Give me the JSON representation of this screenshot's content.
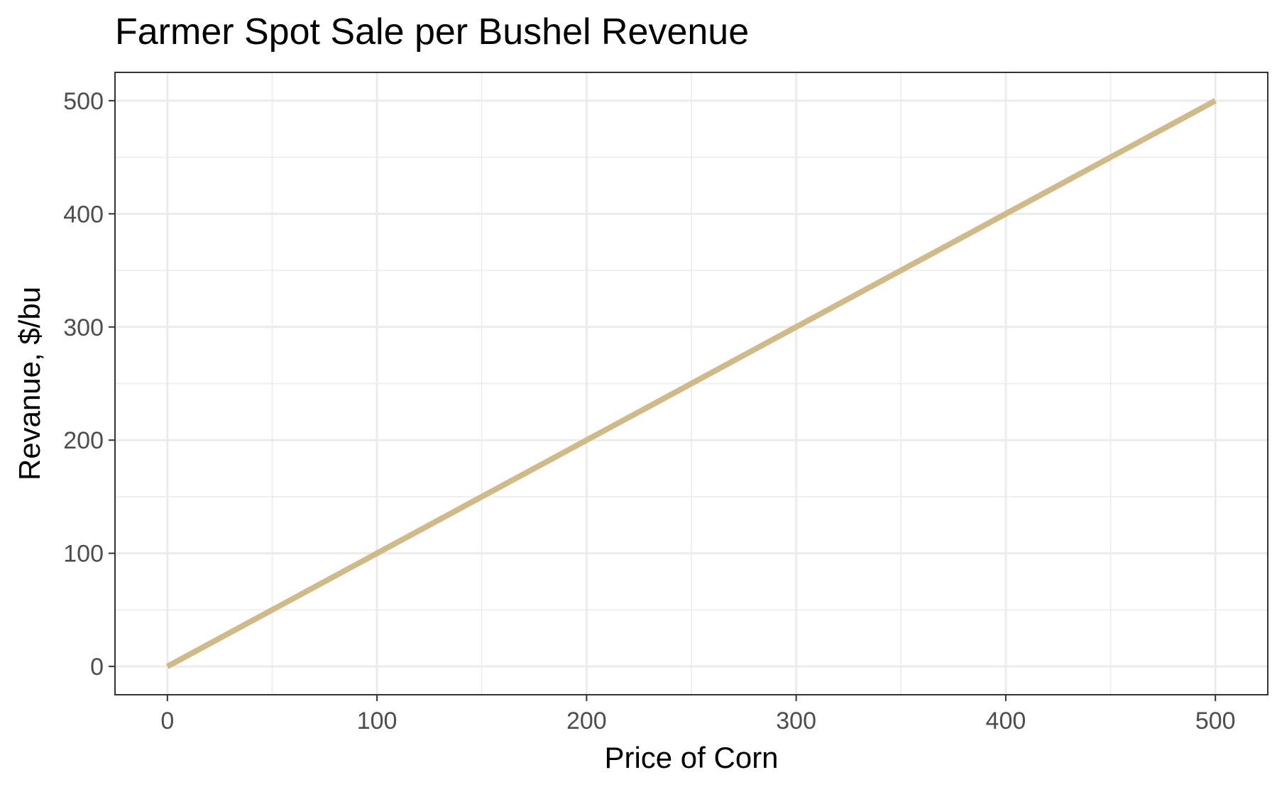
{
  "chart_data": {
    "type": "line",
    "title": "Farmer Spot Sale per Bushel Revenue",
    "xlabel": "Price of Corn",
    "ylabel": "Revanue, $/bu",
    "xlim": [
      -25,
      525
    ],
    "ylim": [
      -25,
      525
    ],
    "x_ticks": [
      0,
      100,
      200,
      300,
      400,
      500
    ],
    "y_ticks": [
      0,
      100,
      200,
      300,
      400,
      500
    ],
    "x_tick_labels": [
      "0",
      "100",
      "200",
      "300",
      "400",
      "500"
    ],
    "y_tick_labels": [
      "0",
      "100",
      "200",
      "300",
      "400",
      "500"
    ],
    "grid": true,
    "series": [
      {
        "color": "#cfba88",
        "x": [
          0,
          100,
          200,
          300,
          400,
          500
        ],
        "y": [
          0,
          100,
          200,
          300,
          400,
          500
        ]
      }
    ]
  }
}
